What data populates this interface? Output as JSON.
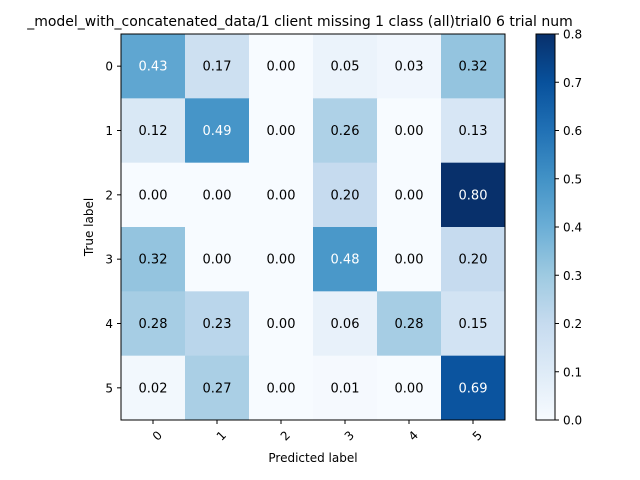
{
  "chart_data": {
    "type": "heatmap",
    "title": "_model_with_concatenated_data/1 client missing 1 class (all)trial0 6 trial num",
    "xlabel": "Predicted label",
    "ylabel": "True label",
    "x_categories": [
      "0",
      "1",
      "2",
      "3",
      "4",
      "5"
    ],
    "y_categories": [
      "0",
      "1",
      "2",
      "3",
      "4",
      "5"
    ],
    "values": [
      [
        0.43,
        0.17,
        0.0,
        0.05,
        0.03,
        0.32
      ],
      [
        0.12,
        0.49,
        0.0,
        0.26,
        0.0,
        0.13
      ],
      [
        0.0,
        0.0,
        0.0,
        0.2,
        0.0,
        0.8
      ],
      [
        0.32,
        0.0,
        0.0,
        0.48,
        0.0,
        0.2
      ],
      [
        0.28,
        0.23,
        0.0,
        0.06,
        0.28,
        0.15
      ],
      [
        0.02,
        0.27,
        0.0,
        0.01,
        0.0,
        0.69
      ]
    ],
    "colormap": "Blues",
    "color_range": [
      0.0,
      0.8
    ],
    "colorbar_ticks": [
      "0.0",
      "0.1",
      "0.2",
      "0.3",
      "0.4",
      "0.5",
      "0.6",
      "0.7",
      "0.8"
    ],
    "x_tick_rotation": 45,
    "grid": false
  }
}
